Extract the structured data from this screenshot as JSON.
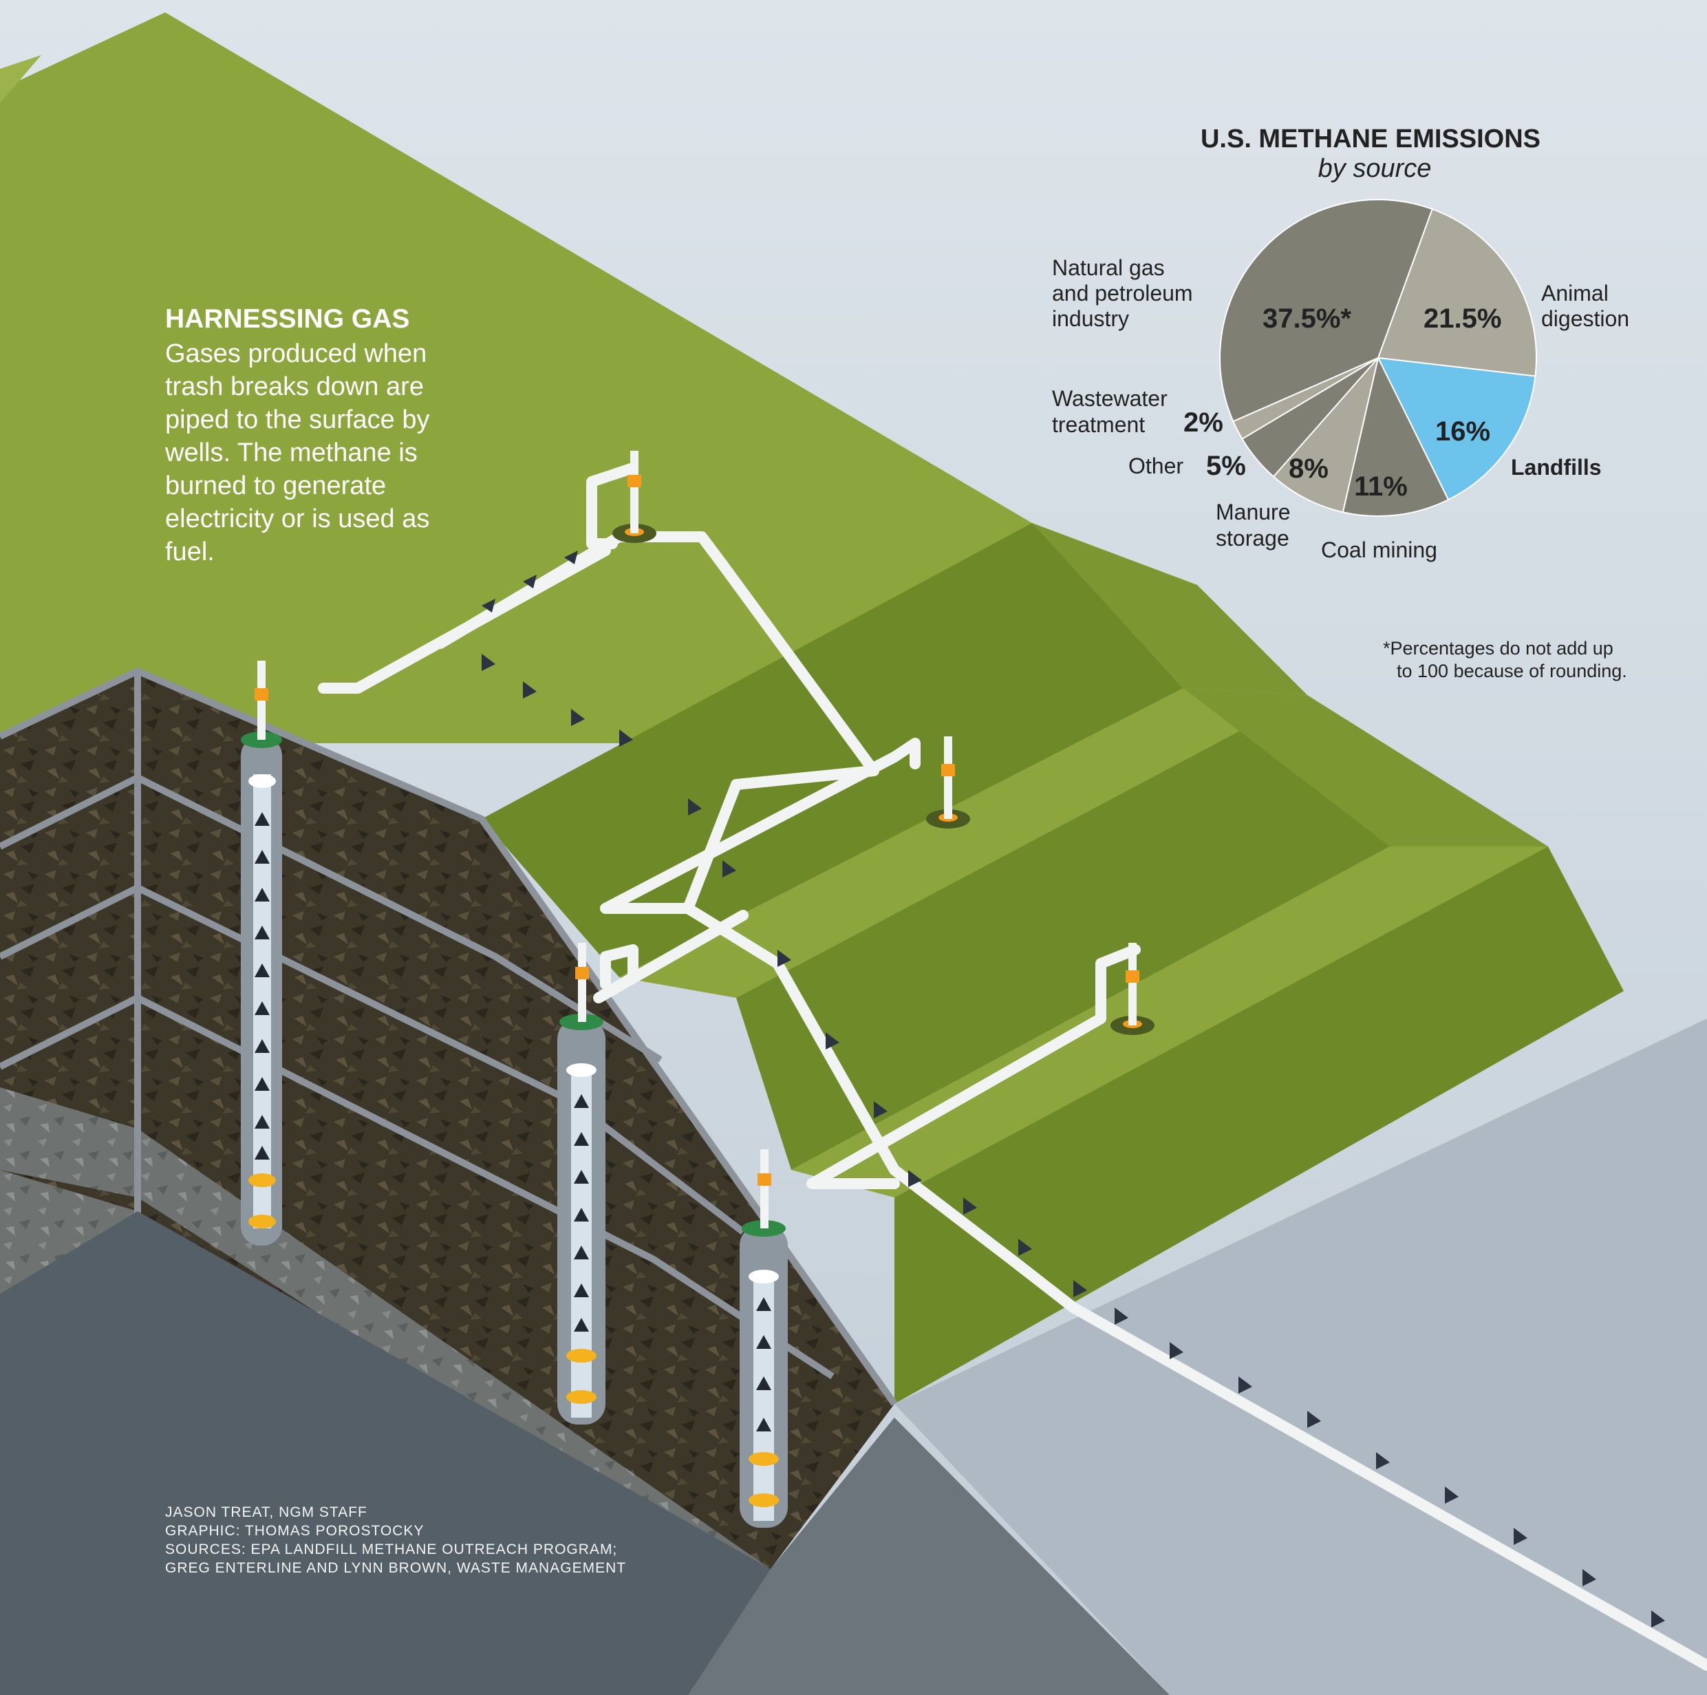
{
  "intro": {
    "title": "HARNESSING GAS",
    "body": "Gases produced when trash breaks down are piped to the surface by wells. The methane is burned to generate electricity or is used as fuel."
  },
  "credits": [
    "JASON TREAT, NGM STAFF",
    "GRAPHIC: THOMAS POROSTOCKY",
    "SOURCES: EPA LANDFILL METHANE OUTREACH PROGRAM;",
    "GREG ENTERLINE AND LYNN BROWN, WASTE MANAGEMENT"
  ],
  "footnote": [
    "*Percentages do not add up",
    "to 100 because of rounding."
  ],
  "colors": {
    "grass": "#8aa33a",
    "grass_dark": "#6f8a2a",
    "soil": "#4a4232",
    "sky": "#d6dee6",
    "landfills": "#6cc3ec",
    "gray_dark": "#7f7f74",
    "gray_light": "#aba89c"
  },
  "chart_data": {
    "type": "pie",
    "title": "U.S. METHANE EMISSIONS",
    "subtitle": "by source",
    "slices": [
      {
        "label": "Animal digestion",
        "value": 21.5,
        "value_label": "21.5%",
        "color": "#aba89c"
      },
      {
        "label": "Landfills",
        "value": 16,
        "value_label": "16%",
        "color": "#6cc3ec"
      },
      {
        "label": "Coal mining",
        "value": 11,
        "value_label": "11%",
        "color": "#7f7f74"
      },
      {
        "label": "Manure storage",
        "value": 8,
        "value_label": "8%",
        "color": "#aba89c"
      },
      {
        "label": "Other",
        "value": 5,
        "value_label": "5%",
        "color": "#7f7f74"
      },
      {
        "label": "Wastewater treatment",
        "value": 2,
        "value_label": "2%",
        "color": "#aba89c"
      },
      {
        "label": "Natural gas and petroleum industry",
        "value": 37.5,
        "value_label": "37.5%*",
        "color": "#7f7f74"
      }
    ]
  }
}
